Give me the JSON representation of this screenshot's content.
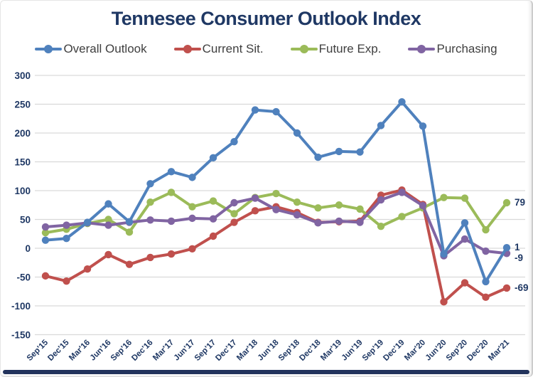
{
  "title": "Tennesee Consumer Outlook Index",
  "colors": {
    "blue": "#4F81BD",
    "red": "#C0504D",
    "green": "#9BBB59",
    "purple": "#8064A2",
    "axis_text": "#1F3864",
    "grid": "#D9D9D9",
    "legend_text": "#3F3F3F",
    "bottom_bar": "#22335C",
    "background": "#FFFFFF"
  },
  "chart_data": {
    "type": "line",
    "title": "Tennesee Consumer Outlook Index",
    "categories": [
      "Sep'15",
      "Dec'15",
      "Mar'16",
      "Jun'16",
      "Sep'16",
      "Dec'16",
      "Mar'17",
      "Jun'17",
      "Sep'17",
      "Dec'17",
      "Mar'18",
      "Jun'18",
      "Sep'18",
      "Dec'18",
      "Mar'19",
      "Jun'19",
      "Sep'19",
      "Dec'19",
      "Mar'20",
      "Jun'20",
      "Sep'20",
      "Dec'20",
      "Mar'21"
    ],
    "series": [
      {
        "name": "Overall Outlook",
        "color_key": "blue",
        "values": [
          14,
          17,
          45,
          77,
          46,
          112,
          133,
          123,
          157,
          185,
          240,
          237,
          200,
          158,
          168,
          167,
          213,
          254,
          212,
          -10,
          44,
          -58,
          1
        ]
      },
      {
        "name": "Current Sit.",
        "color_key": "red",
        "values": [
          -48,
          -57,
          -36,
          -11,
          -28,
          -16,
          -10,
          -1,
          21,
          45,
          65,
          72,
          62,
          45,
          46,
          47,
          92,
          101,
          76,
          -93,
          -60,
          -85,
          -69
        ]
      },
      {
        "name": "Future Exp.",
        "color_key": "green",
        "values": [
          27,
          33,
          43,
          50,
          28,
          80,
          97,
          72,
          82,
          60,
          88,
          95,
          80,
          70,
          75,
          68,
          38,
          55,
          70,
          88,
          87,
          32,
          79
        ]
      },
      {
        "name": "Purchasing",
        "color_key": "purple",
        "values": [
          37,
          40,
          44,
          40,
          45,
          49,
          47,
          52,
          51,
          79,
          87,
          67,
          58,
          44,
          47,
          45,
          84,
          97,
          74,
          -13,
          16,
          -5,
          -9
        ]
      }
    ],
    "ylim": [
      -150,
      300
    ],
    "ytick_step": 50,
    "yticks": [
      300,
      250,
      200,
      150,
      100,
      50,
      0,
      -50,
      -100,
      -150
    ],
    "grid": true,
    "legend_position": "top",
    "end_labels": [
      {
        "series": "Future Exp.",
        "text": "79"
      },
      {
        "series": "Overall Outlook",
        "text": "1"
      },
      {
        "series": "Purchasing",
        "text": "-9"
      },
      {
        "series": "Current Sit.",
        "text": "-69"
      }
    ]
  }
}
